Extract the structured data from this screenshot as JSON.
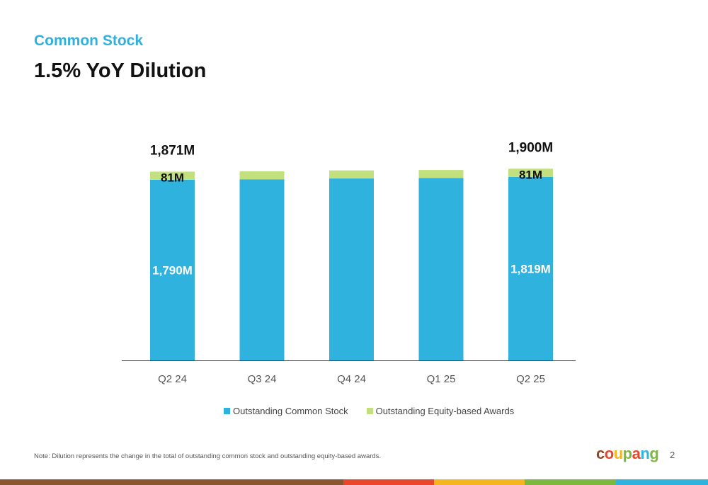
{
  "header": {
    "subtitle": "Common Stock",
    "title": "1.5% YoY Dilution"
  },
  "colors": {
    "common": "#30b2df",
    "awards": "#c3e07e",
    "subtitle": "#2fb1de"
  },
  "chart_data": {
    "type": "bar",
    "stacked": true,
    "categories": [
      "Q2 24",
      "Q3 24",
      "Q4 24",
      "Q1 25",
      "Q2 25"
    ],
    "series": [
      {
        "name": "Outstanding Common Stock",
        "values": [
          1790,
          1795,
          1803,
          1807,
          1819
        ]
      },
      {
        "name": "Outstanding Equity-based Awards",
        "values": [
          81,
          79,
          80,
          80,
          81
        ]
      }
    ],
    "data_labels": [
      {
        "category": "Q2 24",
        "total": "1,871M",
        "awards": "81M",
        "common": "1,790M"
      },
      {
        "category": "Q3 24",
        "total": "",
        "awards": "",
        "common": ""
      },
      {
        "category": "Q4 24",
        "total": "",
        "awards": "",
        "common": ""
      },
      {
        "category": "Q1 25",
        "total": "",
        "awards": "",
        "common": ""
      },
      {
        "category": "Q2 25",
        "total": "1,900M",
        "awards": "81M",
        "common": "1,819M"
      }
    ],
    "ylim": [
      0,
      2100
    ],
    "grid": false,
    "legend": "bottom"
  },
  "legend": {
    "common": "Outstanding Common Stock",
    "awards": "Outstanding Equity-based Awards"
  },
  "footer": {
    "note": "Note: Dilution represents the change in the total of outstanding common stock and outstanding equity-based awards.",
    "logo": {
      "letters": [
        "c",
        "o",
        "u",
        "p",
        "a",
        "n",
        "g"
      ],
      "colors": [
        "#8a4b2a",
        "#e8472b",
        "#f4b51f",
        "#7cb73f",
        "#e8472b",
        "#30b2df",
        "#7cb73f"
      ]
    },
    "separator": "|",
    "page": "2",
    "stripe_colors": [
      "#8a5630",
      "#e8472b",
      "#f4b51f",
      "#7cb73f",
      "#30b2df"
    ]
  }
}
